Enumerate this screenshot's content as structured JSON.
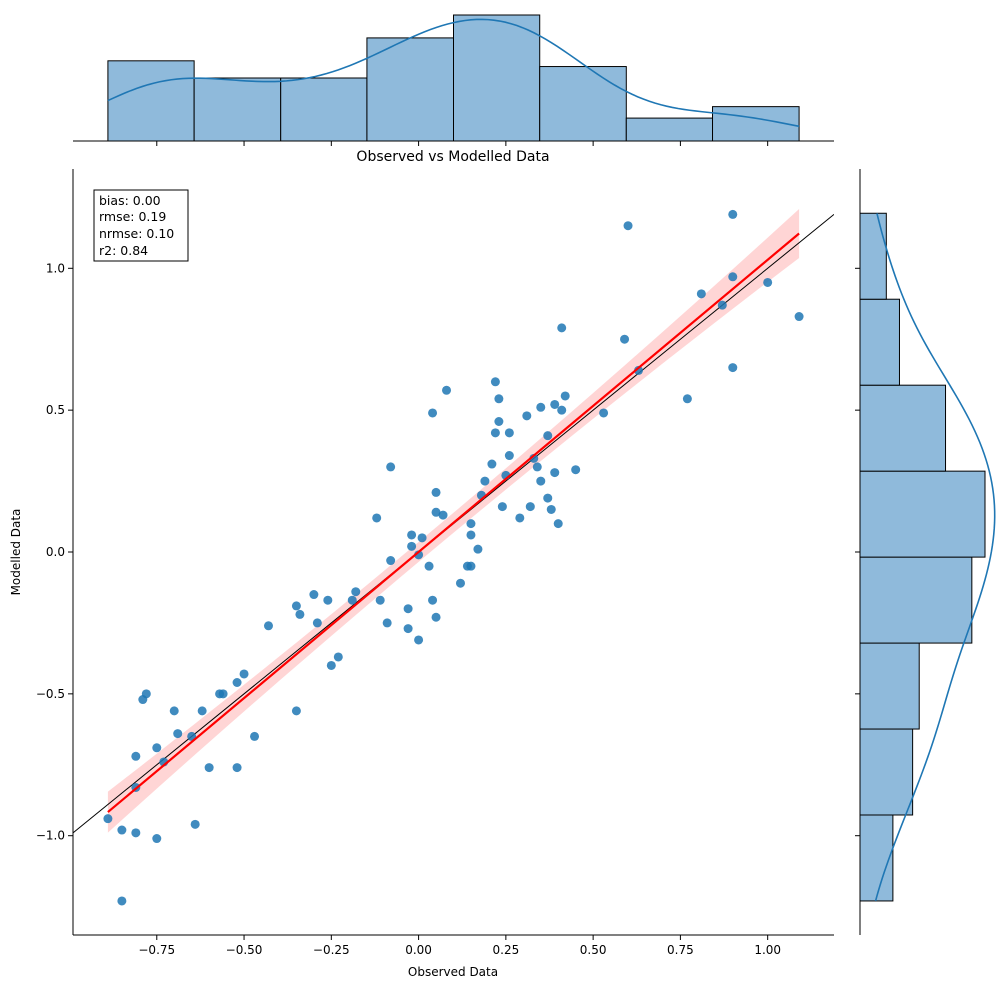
{
  "chart_data": {
    "type": "scatter",
    "title": "Observed vs Modelled Data",
    "xlabel": "Observed Data",
    "ylabel": "Modelled Data",
    "xlim": [
      -0.99,
      1.19
    ],
    "ylim": [
      -1.35,
      1.35
    ],
    "xticks": [
      -0.75,
      -0.5,
      -0.25,
      0.0,
      0.25,
      0.5,
      0.75,
      1.0
    ],
    "xtick_labels": [
      "−0.75",
      "−0.50",
      "−0.25",
      "0.00",
      "0.25",
      "0.50",
      "0.75",
      "1.00"
    ],
    "yticks": [
      -1.0,
      -0.5,
      0.0,
      0.5,
      1.0
    ],
    "ytick_labels": [
      "−1.0",
      "−0.5",
      "0.0",
      "0.5",
      "1.0"
    ],
    "stats": [
      "bias: 0.00",
      "rmse: 0.19",
      "nrmse: 0.10",
      "r2: 0.84"
    ],
    "colors": {
      "points": "#1f77b4",
      "regression": "#ff0000",
      "band": "#ffb3b3",
      "identity": "#000000",
      "hist": "#8fbadb"
    },
    "points": [
      [
        -0.89,
        -0.94
      ],
      [
        -0.85,
        -0.98
      ],
      [
        -0.85,
        -1.23
      ],
      [
        -0.81,
        -0.72
      ],
      [
        -0.81,
        -0.83
      ],
      [
        -0.81,
        -0.99
      ],
      [
        -0.79,
        -0.52
      ],
      [
        -0.78,
        -0.5
      ],
      [
        -0.75,
        -0.69
      ],
      [
        -0.75,
        -1.01
      ],
      [
        -0.73,
        -0.74
      ],
      [
        -0.7,
        -0.56
      ],
      [
        -0.69,
        -0.64
      ],
      [
        -0.65,
        -0.65
      ],
      [
        -0.64,
        -0.96
      ],
      [
        -0.62,
        -0.56
      ],
      [
        -0.6,
        -0.76
      ],
      [
        -0.57,
        -0.5
      ],
      [
        -0.56,
        -0.5
      ],
      [
        -0.52,
        -0.46
      ],
      [
        -0.52,
        -0.76
      ],
      [
        -0.5,
        -0.43
      ],
      [
        -0.47,
        -0.65
      ],
      [
        -0.43,
        -0.26
      ],
      [
        -0.35,
        -0.19
      ],
      [
        -0.35,
        -0.56
      ],
      [
        -0.34,
        -0.22
      ],
      [
        -0.3,
        -0.15
      ],
      [
        -0.29,
        -0.25
      ],
      [
        -0.26,
        -0.17
      ],
      [
        -0.25,
        -0.4
      ],
      [
        -0.23,
        -0.37
      ],
      [
        -0.19,
        -0.17
      ],
      [
        -0.18,
        -0.14
      ],
      [
        -0.12,
        0.12
      ],
      [
        -0.11,
        -0.17
      ],
      [
        -0.09,
        -0.25
      ],
      [
        -0.08,
        -0.03
      ],
      [
        -0.08,
        0.3
      ],
      [
        -0.03,
        -0.2
      ],
      [
        -0.03,
        -0.27
      ],
      [
        -0.02,
        0.06
      ],
      [
        -0.02,
        0.02
      ],
      [
        0.0,
        -0.31
      ],
      [
        0.0,
        -0.01
      ],
      [
        0.01,
        0.05
      ],
      [
        0.03,
        -0.05
      ],
      [
        0.04,
        -0.17
      ],
      [
        0.04,
        0.49
      ],
      [
        0.05,
        0.21
      ],
      [
        0.05,
        -0.23
      ],
      [
        0.05,
        0.14
      ],
      [
        0.07,
        0.13
      ],
      [
        0.08,
        0.57
      ],
      [
        0.12,
        -0.11
      ],
      [
        0.14,
        -0.05
      ],
      [
        0.15,
        -0.05
      ],
      [
        0.15,
        0.1
      ],
      [
        0.15,
        0.06
      ],
      [
        0.17,
        0.01
      ],
      [
        0.18,
        0.2
      ],
      [
        0.19,
        0.25
      ],
      [
        0.21,
        0.31
      ],
      [
        0.22,
        0.6
      ],
      [
        0.22,
        0.42
      ],
      [
        0.23,
        0.54
      ],
      [
        0.23,
        0.46
      ],
      [
        0.24,
        0.16
      ],
      [
        0.25,
        0.27
      ],
      [
        0.26,
        0.42
      ],
      [
        0.26,
        0.34
      ],
      [
        0.29,
        0.12
      ],
      [
        0.31,
        0.48
      ],
      [
        0.32,
        0.16
      ],
      [
        0.33,
        0.33
      ],
      [
        0.34,
        0.3
      ],
      [
        0.35,
        0.25
      ],
      [
        0.35,
        0.51
      ],
      [
        0.37,
        0.19
      ],
      [
        0.37,
        0.41
      ],
      [
        0.38,
        0.15
      ],
      [
        0.39,
        0.28
      ],
      [
        0.39,
        0.52
      ],
      [
        0.4,
        0.1
      ],
      [
        0.41,
        0.79
      ],
      [
        0.41,
        0.5
      ],
      [
        0.42,
        0.55
      ],
      [
        0.45,
        0.29
      ],
      [
        0.53,
        0.49
      ],
      [
        0.59,
        0.75
      ],
      [
        0.6,
        1.15
      ],
      [
        0.63,
        0.64
      ],
      [
        0.77,
        0.54
      ],
      [
        0.81,
        0.91
      ],
      [
        0.87,
        0.87
      ],
      [
        0.9,
        1.19
      ],
      [
        0.9,
        0.65
      ],
      [
        0.9,
        0.97
      ],
      [
        1.0,
        0.95
      ],
      [
        1.09,
        0.83
      ]
    ],
    "regression": {
      "slope": 1.03,
      "intercept": 0.0,
      "x_range": [
        -0.89,
        1.09
      ]
    },
    "hist_x": {
      "bins": [
        -0.89,
        -0.643,
        -0.395,
        -0.148,
        0.1,
        0.347,
        0.595,
        0.842,
        1.09
      ],
      "counts": [
        14,
        11,
        11,
        18,
        22,
        13,
        4,
        6
      ]
    },
    "hist_y": {
      "bins": [
        -1.23,
        -0.927,
        -0.624,
        -0.321,
        -0.018,
        0.285,
        0.588,
        0.891,
        1.194
      ],
      "counts": [
        5,
        8,
        9,
        17,
        19,
        13,
        6,
        4
      ]
    }
  }
}
